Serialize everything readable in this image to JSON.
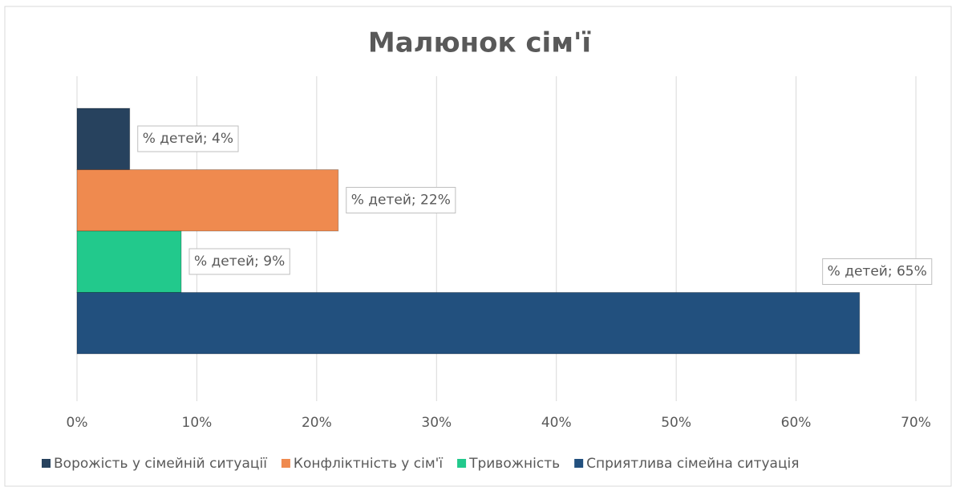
{
  "chart_data": {
    "type": "bar",
    "orientation": "horizontal",
    "title": "Малюнок сім'ї",
    "categories": [
      "% детей"
    ],
    "series": [
      {
        "name": "Ворожість у сімейній ситуації",
        "color": "#27425e",
        "values": [
          4.4
        ],
        "value_labels": [
          "% детей; 4%"
        ]
      },
      {
        "name": "Конфліктність у сім'ї",
        "color": "#ef8a4f",
        "values": [
          21.8
        ],
        "value_labels": [
          "% детей; 22%"
        ]
      },
      {
        "name": "Тривожність",
        "color": "#22c98c",
        "values": [
          8.7
        ],
        "value_labels": [
          "% детей; 9%"
        ]
      },
      {
        "name": "Сприятлива сімейна ситуація",
        "color": "#22507e",
        "values": [
          65.3
        ],
        "value_labels": [
          "% детей; 65%"
        ]
      }
    ],
    "xlim": [
      0,
      70
    ],
    "xticks": [
      {
        "value": 0,
        "label": "0%"
      },
      {
        "value": 10,
        "label": "10%"
      },
      {
        "value": 20,
        "label": "20%"
      },
      {
        "value": 30,
        "label": "30%"
      },
      {
        "value": 40,
        "label": "40%"
      },
      {
        "value": 50,
        "label": "50%"
      },
      {
        "value": 60,
        "label": "60%"
      },
      {
        "value": 70,
        "label": "70%"
      }
    ],
    "grid": true,
    "legend": "bottom"
  }
}
